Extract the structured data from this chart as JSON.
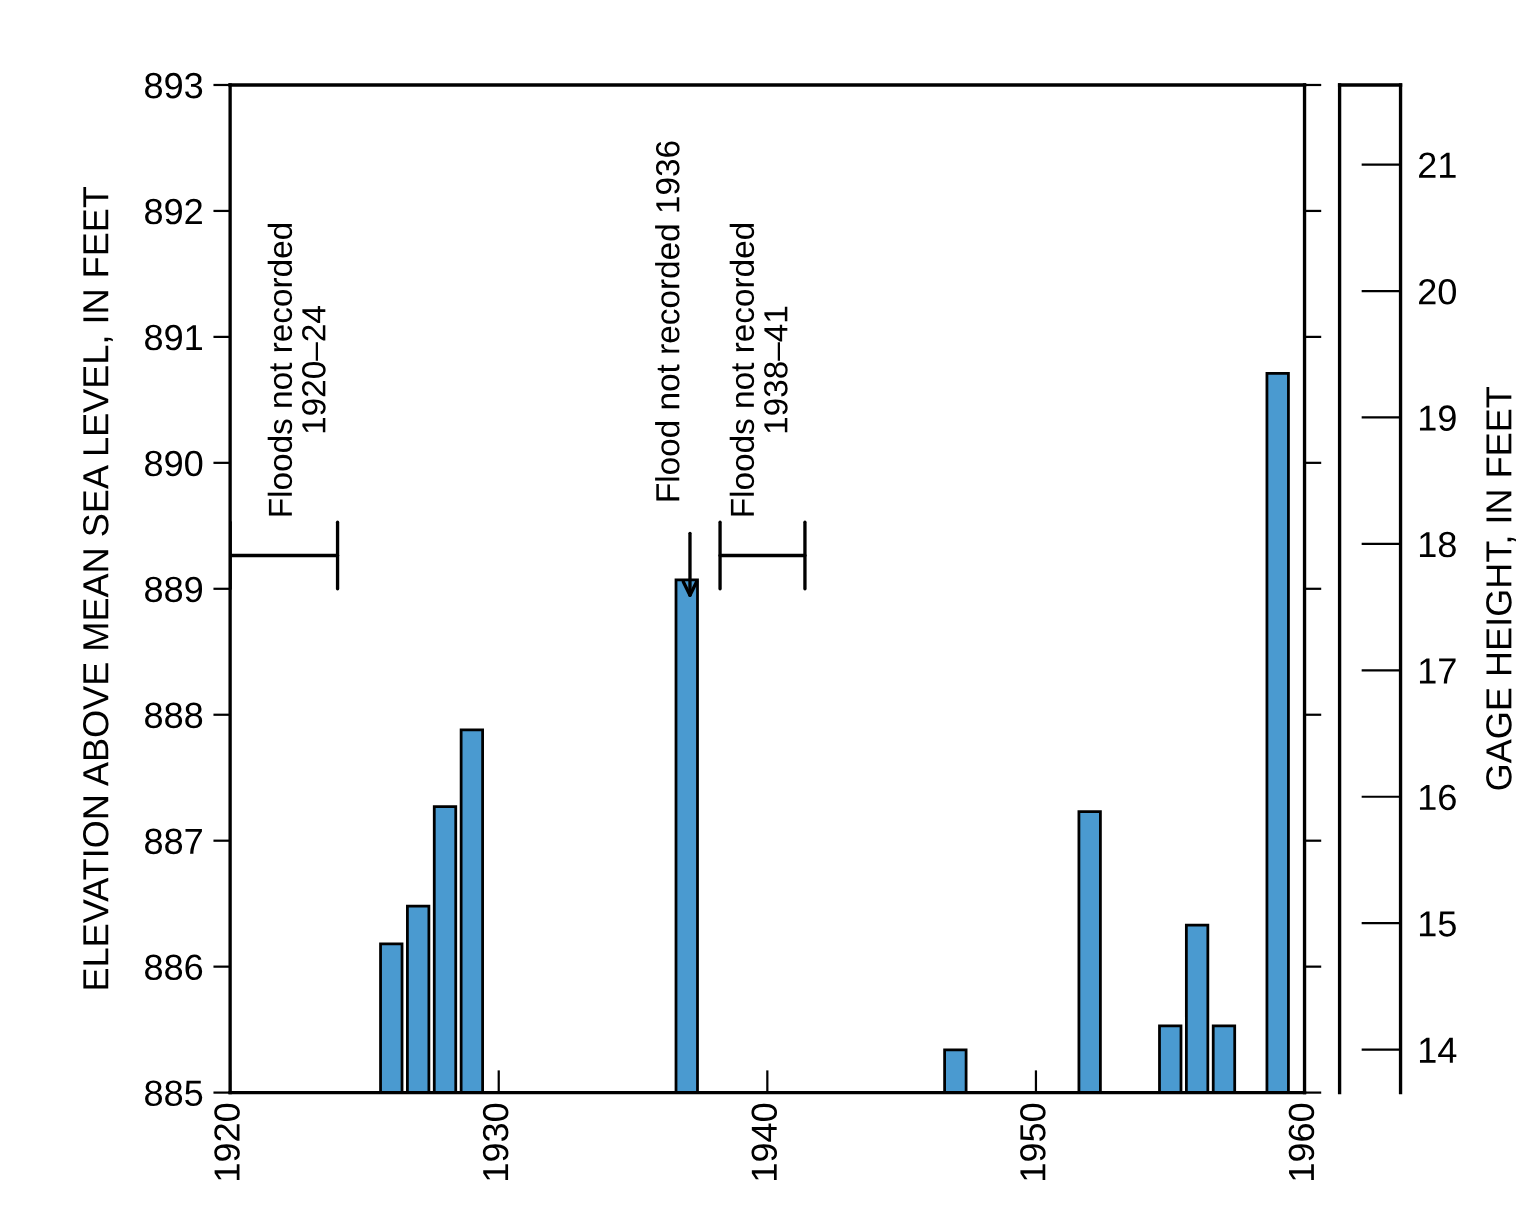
{
  "chart_data": {
    "type": "bar",
    "x": [
      1926,
      1927,
      1928,
      1929,
      1937,
      1947,
      1952,
      1955,
      1956,
      1957,
      1959
    ],
    "values": [
      886.18,
      886.48,
      887.27,
      887.88,
      889.07,
      885.34,
      887.23,
      885.53,
      886.33,
      885.53,
      890.71
    ],
    "color": "#4a9ad0",
    "xlim": [
      1920,
      1960
    ],
    "xticks": [
      1920,
      1930,
      1940,
      1950,
      1960
    ],
    "ylim": [
      885,
      893
    ],
    "yticks": [
      885,
      886,
      887,
      888,
      889,
      890,
      891,
      892,
      893
    ],
    "y2lim": [
      13.66,
      21.63
    ],
    "y2ticks": [
      14,
      15,
      16,
      17,
      18,
      19,
      20,
      21
    ],
    "ylabel": "ELEVATION ABOVE MEAN SEA LEVEL, IN FEET",
    "y2label": "GAGE HEIGHT, IN FEET",
    "annotations": [
      "Floods not recorded\n1920–24",
      "Flood not recorded 1936",
      "Floods not recorded\n1938–41"
    ],
    "grid": false,
    "legend": false
  }
}
